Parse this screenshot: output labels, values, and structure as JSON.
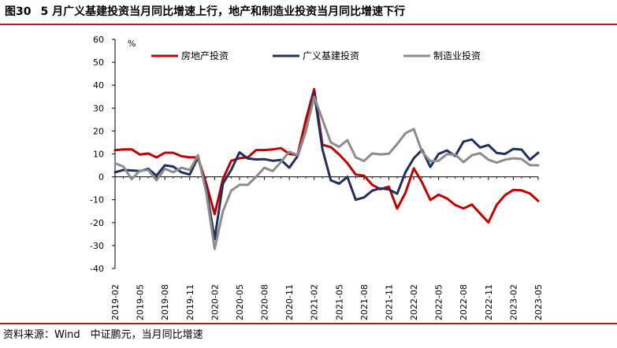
{
  "figure": {
    "label": "图30",
    "title": "5 月广义基建投资当月同比增速上行，地产和制造业投资当月同比增速下行",
    "source": "资料来源：Wind　中证鹏元，当月同比增速"
  },
  "chart_data": {
    "type": "line",
    "ylabel": "%",
    "ylim": [
      -40,
      60
    ],
    "yticks": [
      -40,
      -30,
      -20,
      -10,
      0,
      10,
      20,
      30,
      40,
      50,
      60
    ],
    "x": [
      "2019-02",
      "2019-03",
      "2019-04",
      "2019-05",
      "2019-06",
      "2019-07",
      "2019-08",
      "2019-09",
      "2019-10",
      "2019-11",
      "2019-12",
      "2020-01",
      "2020-02",
      "2020-03",
      "2020-04",
      "2020-05",
      "2020-06",
      "2020-07",
      "2020-08",
      "2020-09",
      "2020-10",
      "2020-11",
      "2020-12",
      "2021-01",
      "2021-02",
      "2021-03",
      "2021-04",
      "2021-05",
      "2021-06",
      "2021-07",
      "2021-08",
      "2021-09",
      "2021-10",
      "2021-11",
      "2021-12",
      "2022-01",
      "2022-02",
      "2022-03",
      "2022-04",
      "2022-05",
      "2022-06",
      "2022-07",
      "2022-08",
      "2022-09",
      "2022-10",
      "2022-11",
      "2022-12",
      "2023-01",
      "2023-02",
      "2023-03",
      "2023-04",
      "2023-05"
    ],
    "xtick_labels": [
      "2019-02",
      "2019-05",
      "2019-08",
      "2019-11",
      "2020-02",
      "2020-05",
      "2020-08",
      "2020-11",
      "2021-02",
      "2021-05",
      "2021-08",
      "2021-11",
      "2022-02",
      "2022-05",
      "2022-08",
      "2022-11",
      "2023-02",
      "2023-05"
    ],
    "legend_position": "top",
    "series": [
      {
        "name": "房地产投资",
        "color": "#c00000",
        "values": [
          11.6,
          12.0,
          12.0,
          9.7,
          10.2,
          8.5,
          10.5,
          10.5,
          9.0,
          8.5,
          8.5,
          -3.0,
          -16.3,
          -1.0,
          7.0,
          8.1,
          8.5,
          11.7,
          11.7,
          12.0,
          12.5,
          10.0,
          9.5,
          25.0,
          38.3,
          14.0,
          13.0,
          9.8,
          6.0,
          1.0,
          0.5,
          -3.5,
          -5.4,
          -4.3,
          -13.9,
          -7.0,
          3.7,
          -2.4,
          -10.1,
          -7.8,
          -9.4,
          -12.3,
          -13.8,
          -12.1,
          -16.0,
          -19.9,
          -12.2,
          -8.0,
          -5.7,
          -5.9,
          -7.3,
          -10.5
        ]
      },
      {
        "name": "广义基建投资",
        "color": "#1f2f5e",
        "values": [
          2.0,
          3.0,
          2.8,
          2.5,
          3.5,
          0.5,
          5.0,
          4.5,
          2.0,
          1.0,
          8.5,
          -5.0,
          -27.2,
          -3.0,
          3.0,
          10.7,
          8.0,
          7.6,
          7.7,
          7.0,
          7.4,
          4.0,
          9.0,
          20.0,
          36.6,
          12.0,
          -1.5,
          -3.0,
          0.0,
          -10.0,
          -9.0,
          -6.0,
          -5.0,
          -5.5,
          -7.4,
          2.0,
          8.1,
          11.8,
          4.3,
          10.0,
          11.5,
          9.1,
          15.4,
          16.3,
          12.8,
          13.9,
          10.4,
          10.0,
          12.2,
          11.9,
          7.5,
          10.5
        ]
      },
      {
        "name": "制造业投资",
        "color": "#8c8c8c",
        "values": [
          5.9,
          4.5,
          -1.0,
          2.7,
          3.0,
          -1.5,
          3.5,
          2.0,
          4.0,
          3.0,
          9.5,
          -7.0,
          -31.5,
          -15.0,
          -6.0,
          -3.5,
          -3.5,
          0.0,
          4.0,
          2.5,
          6.5,
          11.0,
          9.5,
          20.0,
          34.9,
          25.0,
          15.0,
          13.1,
          16.0,
          8.5,
          6.9,
          10.2,
          9.8,
          10.1,
          14.3,
          19.0,
          20.9,
          10.9,
          6.8,
          7.0,
          9.9,
          9.7,
          6.4,
          9.4,
          10.3,
          7.5,
          6.2,
          7.5,
          8.1,
          7.8,
          5.1,
          5.0
        ]
      }
    ]
  }
}
